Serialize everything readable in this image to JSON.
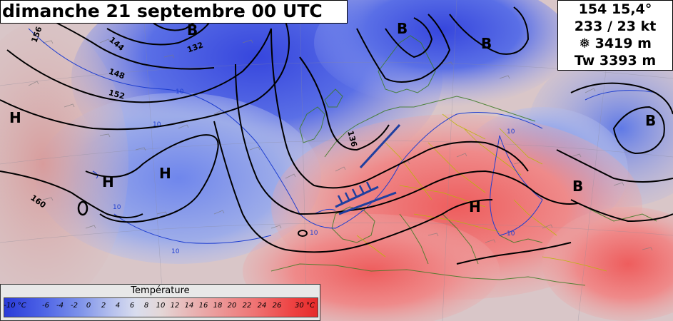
{
  "title": "dimanche 21 septembre 00 UTC",
  "info": {
    "line1": "154  15,4°",
    "line2": "233 / 23 kt",
    "line3": "❅ 3419 m",
    "line4": "Tw 3393 m"
  },
  "legend": {
    "title": "Température",
    "labels": [
      "-10 °C",
      "-6",
      "-4",
      "-2",
      "0",
      "2",
      "4",
      "6",
      "8",
      "10",
      "12",
      "14",
      "16",
      "18",
      "20",
      "22",
      "24",
      "26",
      "30 °C"
    ]
  },
  "pressure_centers": [
    {
      "kind": "low",
      "label": "B"
    },
    {
      "kind": "low",
      "label": "B"
    },
    {
      "kind": "low",
      "label": "B"
    },
    {
      "kind": "low",
      "label": "B"
    },
    {
      "kind": "low",
      "label": "B"
    },
    {
      "kind": "high",
      "label": "H"
    },
    {
      "kind": "high",
      "label": "H"
    },
    {
      "kind": "high",
      "label": "H"
    },
    {
      "kind": "high",
      "label": "H"
    }
  ],
  "contour_labels": [
    "156",
    "144",
    "132",
    "148",
    "152",
    "136",
    "160"
  ],
  "isotherm_labels": [
    "10",
    "10",
    "10",
    "10",
    "10",
    "10",
    "10"
  ],
  "colors": {
    "cold": "#3c52e0",
    "warm": "#ee4a4a",
    "isotherm": "#1f3fd0",
    "contour": "#000000",
    "coast": "#2f6b1f",
    "border": "#b8b800"
  }
}
